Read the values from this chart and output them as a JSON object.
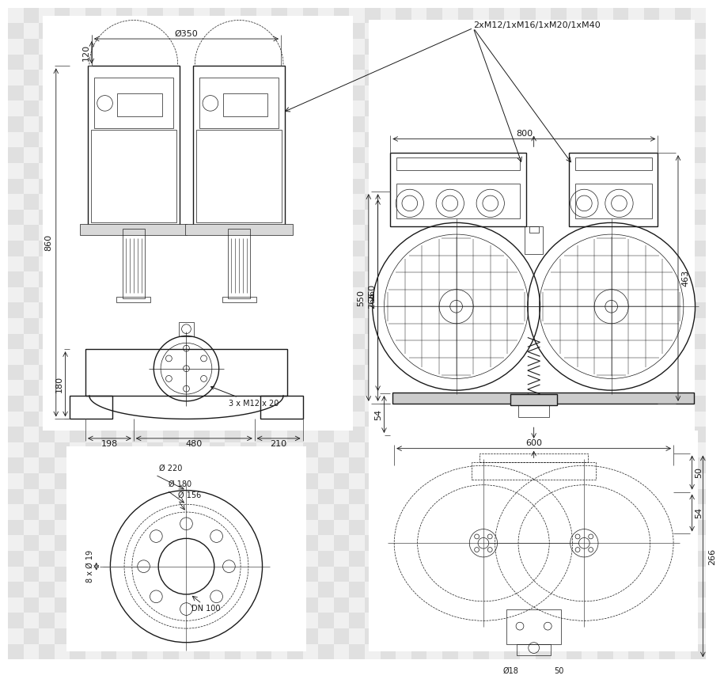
{
  "bg_color": "#ffffff",
  "checker_light": "#e0e0e0",
  "checker_dark": "#f0f0f0",
  "lc": "#1a1a1a",
  "figsize": [
    9.0,
    8.4
  ],
  "dpi": 100,
  "ann": {
    "diam350": "Ø350",
    "label_2xM12": "2xM12/1xM16/1xM20/1xM40",
    "d120": "120",
    "d860": "860",
    "d180": "180",
    "d198": "198",
    "d480": "480",
    "d210": "210",
    "bolt_note": "3 x M12 x 20",
    "d800": "800",
    "d550": "550",
    "d260": "260",
    "d54": "54",
    "d266": "266",
    "d463": "463",
    "d600": "600",
    "d50a": "50",
    "d54b": "54",
    "d266b": "266",
    "d18": "Ø18",
    "d50b": "50",
    "fl220": "Ø 220",
    "fl180": "Ø 180",
    "fl156": "Ø 156",
    "fl19": "8 x Ø 19",
    "flDN": "DN 100"
  }
}
